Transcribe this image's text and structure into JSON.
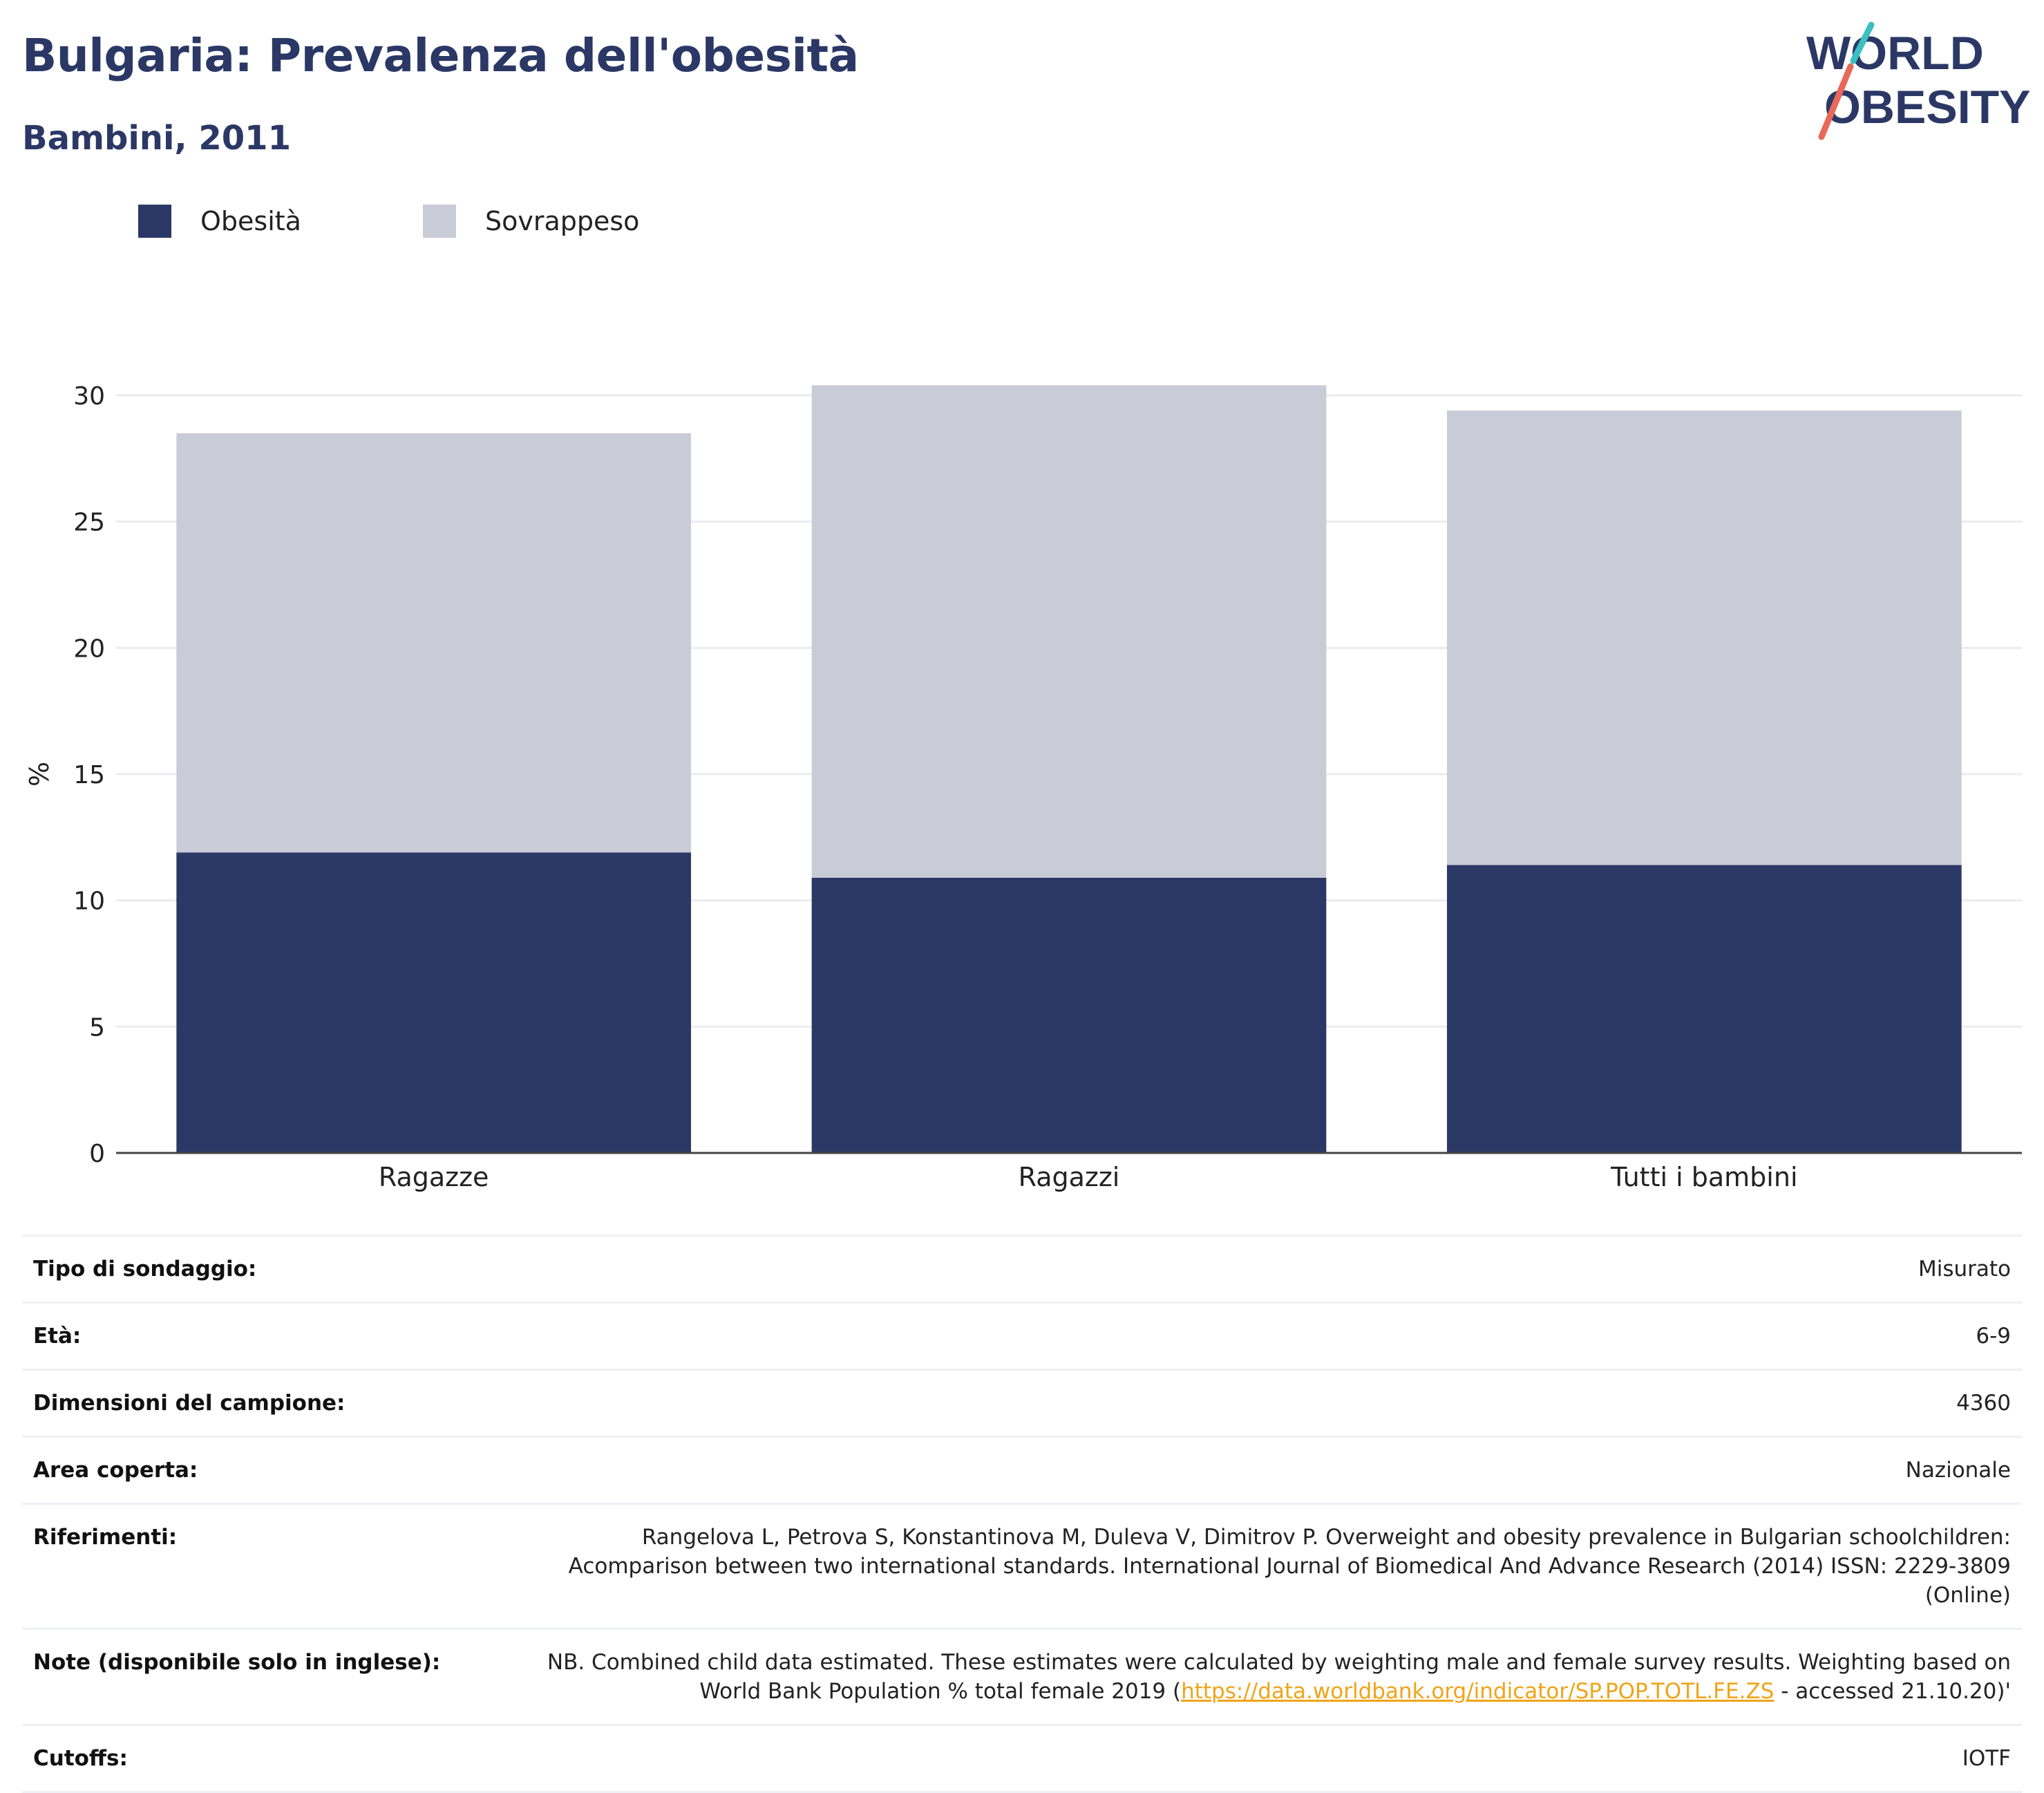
{
  "header": {
    "title": "Bulgaria: Prevalenza dell'obesità",
    "subtitle": "Bambini, 2011"
  },
  "logo": {
    "line1": "WORLD",
    "line2": "OBESITY"
  },
  "legend": [
    {
      "label": "Obesità",
      "color": "#2b3866"
    },
    {
      "label": "Sovrappeso",
      "color": "#c9cbd7"
    }
  ],
  "chart_data": {
    "type": "bar",
    "stacked": true,
    "categories": [
      "Ragazze",
      "Ragazzi",
      "Tutti i bambini"
    ],
    "series": [
      {
        "name": "Obesità",
        "color": "#2b3866",
        "values": [
          11.9,
          10.9,
          11.4
        ]
      },
      {
        "name": "Sovrappeso",
        "color": "#c9cbd7",
        "values": [
          16.6,
          19.5,
          18.0
        ]
      }
    ],
    "ylabel": "%",
    "ylim": [
      0,
      30
    ],
    "yticks": [
      0,
      5,
      10,
      15,
      20,
      25,
      30
    ],
    "grid": true,
    "legend_position": "top-left"
  },
  "meta": [
    {
      "key": "Tipo di sondaggio:",
      "value": "Misurato"
    },
    {
      "key": "Età:",
      "value": "6-9"
    },
    {
      "key": "Dimensioni del campione:",
      "value": "4360"
    },
    {
      "key": "Area coperta:",
      "value": "Nazionale"
    },
    {
      "key": "Riferimenti:",
      "value": "Rangelova L, Petrova S, Konstantinova M, Duleva V, Dimitrov P. Overweight and obesity prevalence in Bulgarian schoolchildren: Acomparison between two international standards. International Journal of Biomedical And Advance Research (2014) ISSN: 2229-3809 (Online)"
    },
    {
      "key": "Note (disponibile solo in inglese):",
      "value_before": "NB. Combined child data estimated. These estimates were calculated by weighting male and female survey results. Weighting based on World Bank Population % total female 2019 (",
      "link": "https://data.worldbank.org/indicator/SP.POP.TOTL.FE.ZS",
      "value_after": " - accessed 21.10.20)'"
    },
    {
      "key": "Cutoffs:",
      "value": "IOTF"
    }
  ]
}
